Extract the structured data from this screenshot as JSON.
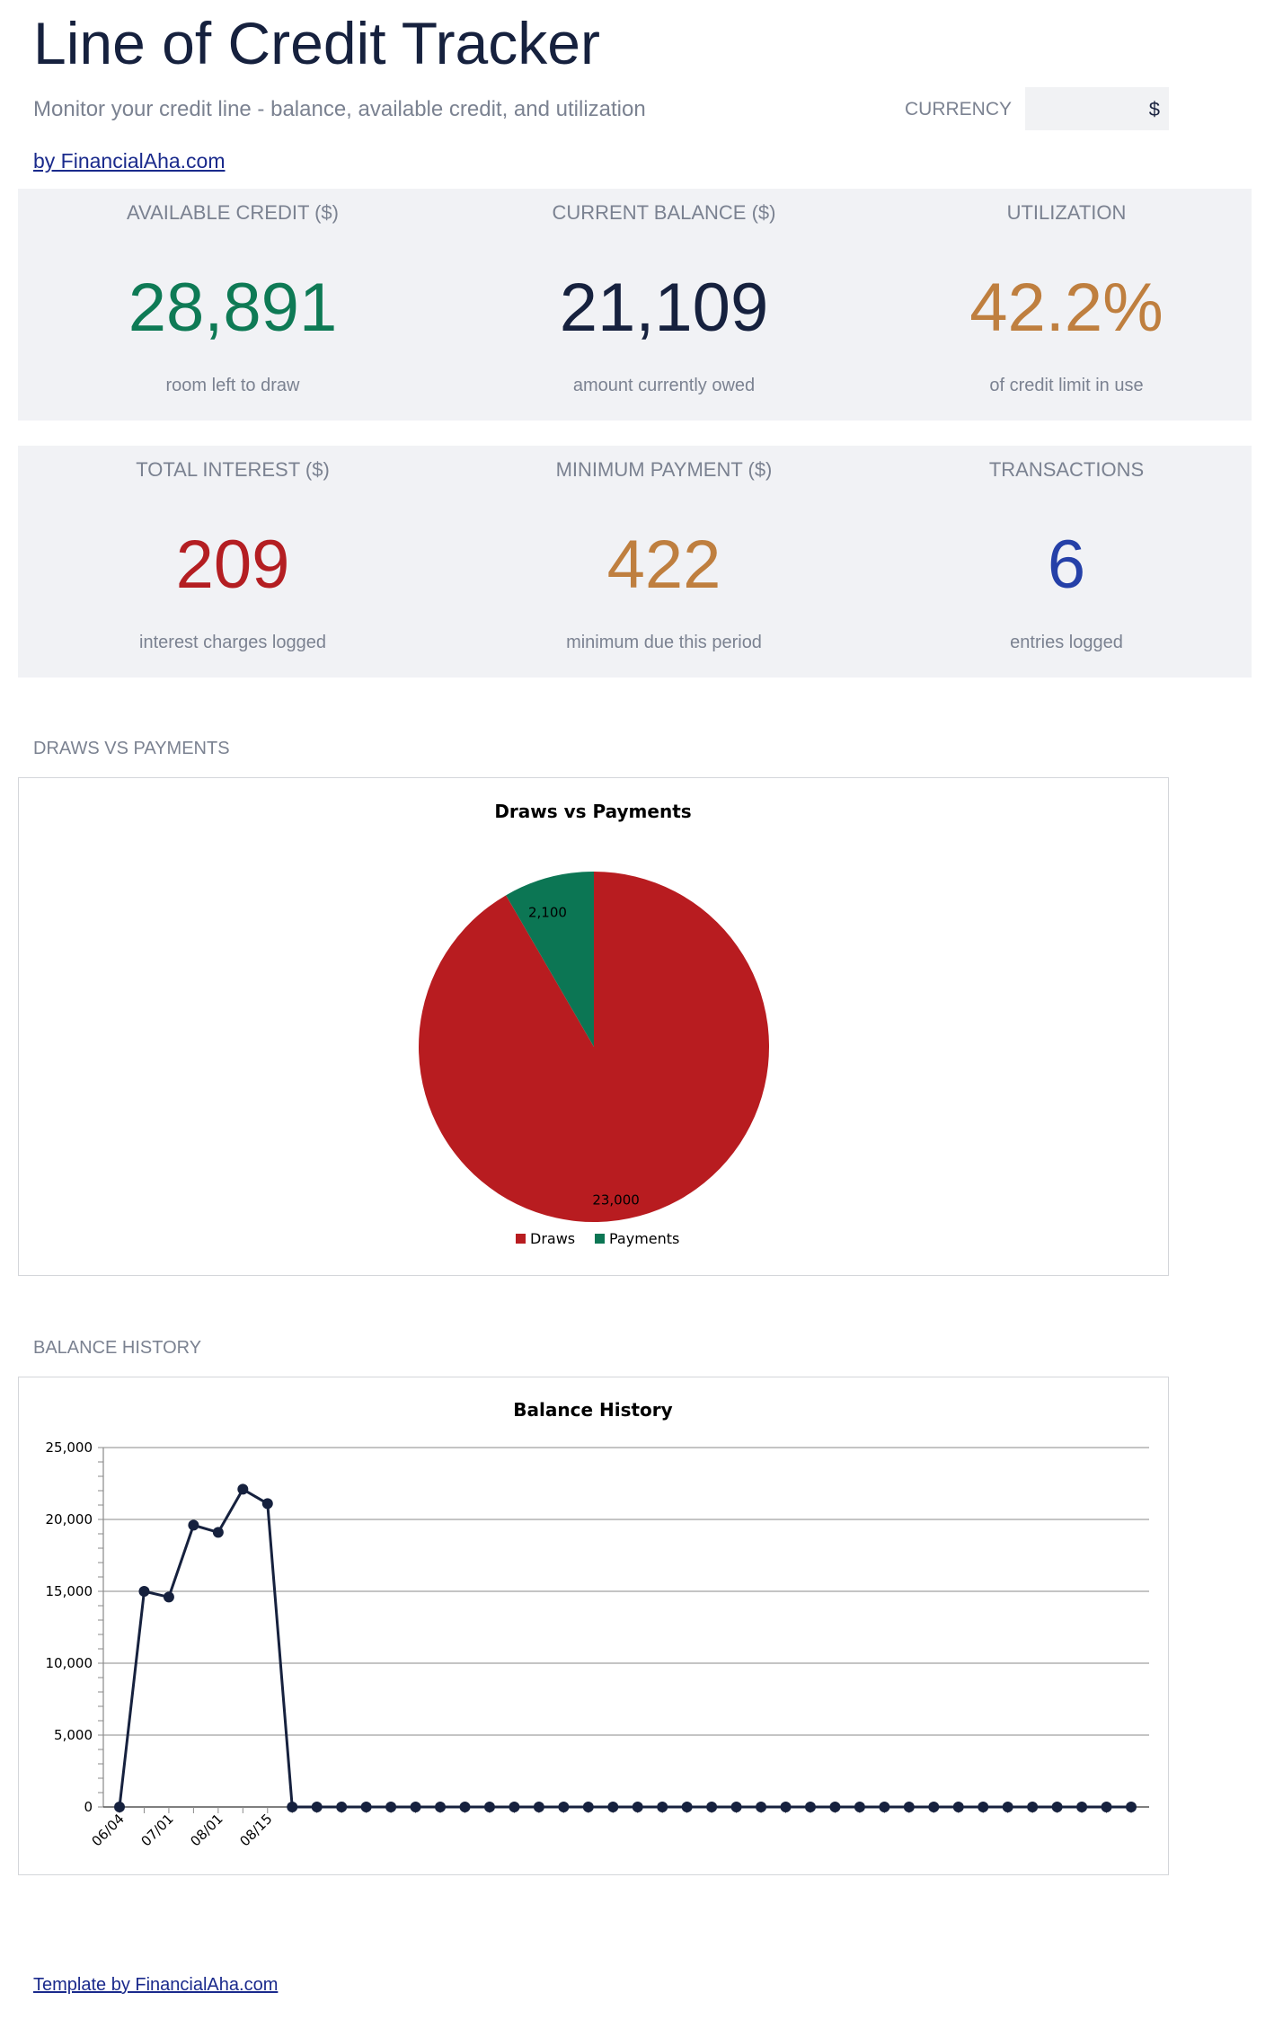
{
  "header": {
    "title": "Line of Credit Tracker",
    "subtitle": "Monitor your credit line - balance, available credit, and utilization",
    "currency_label": "CURRENCY",
    "currency_value": "$",
    "byline": "by FinancialAha.com"
  },
  "kpis_row1": [
    {
      "label": "AVAILABLE CREDIT ($)",
      "value": "28,891",
      "note": "room left to draw",
      "color": "#0e7a55"
    },
    {
      "label": "CURRENT BALANCE ($)",
      "value": "21,109",
      "note": "amount currently owed",
      "color": "#16213e"
    },
    {
      "label": "UTILIZATION",
      "value": "42.2%",
      "note": "of credit limit in use",
      "color": "#bf7f3f"
    }
  ],
  "kpis_row2": [
    {
      "label": "TOTAL INTEREST ($)",
      "value": "209",
      "note": "interest charges logged",
      "color": "#b41e22"
    },
    {
      "label": "MINIMUM PAYMENT ($)",
      "value": "422",
      "note": "minimum due this period",
      "color": "#bf7f3f"
    },
    {
      "label": "TRANSACTIONS",
      "value": "6",
      "note": "entries logged",
      "color": "#2540a8"
    }
  ],
  "sections": {
    "pie_label": "DRAWS VS PAYMENTS",
    "line_label": "BALANCE HISTORY"
  },
  "chart_data": [
    {
      "type": "pie",
      "title": "Draws vs Payments",
      "categories": [
        "Draws",
        "Payments"
      ],
      "values": [
        23000,
        2100
      ],
      "data_labels": [
        "23,000",
        "2,100"
      ],
      "colors": [
        "#b81c20",
        "#0c7654"
      ],
      "legend_position": "bottom"
    },
    {
      "type": "line",
      "title": "Balance History",
      "x_tick_labels": [
        "06/04",
        "07/01",
        "08/01",
        "08/15"
      ],
      "y_tick_labels": [
        "0",
        "5,000",
        "10,000",
        "15,000",
        "20,000",
        "25,000"
      ],
      "ylim": [
        0,
        25000
      ],
      "grid": true,
      "series": [
        {
          "color": "#16213e",
          "values": [
            0,
            15000,
            14600,
            19600,
            19100,
            22100,
            21100,
            0,
            0,
            0,
            0,
            0,
            0,
            0,
            0,
            0,
            0,
            0,
            0,
            0,
            0,
            0,
            0,
            0,
            0,
            0,
            0,
            0,
            0,
            0,
            0,
            0,
            0,
            0,
            0,
            0,
            0,
            0,
            0,
            0,
            0,
            0
          ]
        }
      ]
    }
  ],
  "footer": {
    "link": "Template by FinancialAha.com"
  }
}
